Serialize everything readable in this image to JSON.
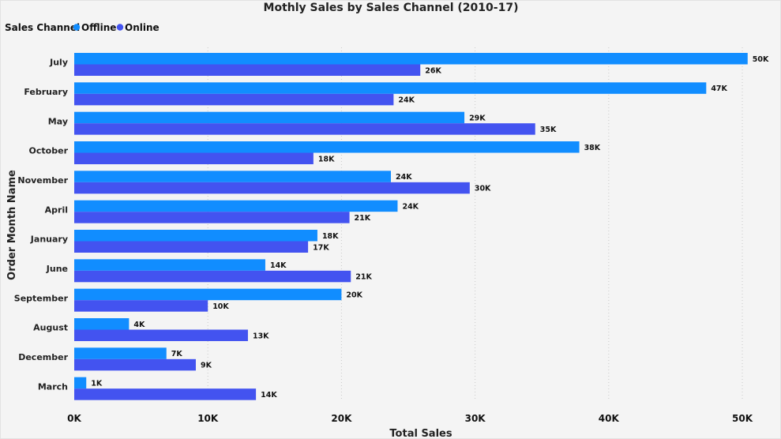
{
  "chart_data": {
    "type": "bar",
    "orientation": "horizontal",
    "title": "Mothly Sales by Sales Channel (2010-17)",
    "legend": {
      "title": "Sales Channel",
      "position": "top-left"
    },
    "xlabel": "Total Sales",
    "ylabel": "Order Month Name",
    "xlim": [
      0,
      52000
    ],
    "x_ticks": [
      {
        "value": 0,
        "label": "0K"
      },
      {
        "value": 10000,
        "label": "10K"
      },
      {
        "value": 20000,
        "label": "20K"
      },
      {
        "value": 30000,
        "label": "30K"
      },
      {
        "value": 40000,
        "label": "40K"
      },
      {
        "value": 50000,
        "label": "50K"
      }
    ],
    "grid": true,
    "categories": [
      "July",
      "February",
      "May",
      "October",
      "November",
      "April",
      "January",
      "June",
      "September",
      "August",
      "December",
      "March"
    ],
    "series": [
      {
        "name": "Offline",
        "color": "#118DFF",
        "values": [
          50400,
          47300,
          29200,
          37800,
          23700,
          24200,
          18200,
          14300,
          20000,
          4100,
          6900,
          900
        ],
        "labels": [
          "50K",
          "47K",
          "29K",
          "38K",
          "24K",
          "24K",
          "18K",
          "14K",
          "20K",
          "4K",
          "7K",
          "1K"
        ]
      },
      {
        "name": "Online",
        "color": "#4353F0",
        "values": [
          25900,
          23900,
          34500,
          17900,
          29600,
          20600,
          17500,
          20700,
          10000,
          13000,
          9100,
          13600
        ],
        "labels": [
          "26K",
          "24K",
          "35K",
          "18K",
          "30K",
          "21K",
          "17K",
          "21K",
          "10K",
          "13K",
          "9K",
          "14K"
        ]
      }
    ]
  }
}
